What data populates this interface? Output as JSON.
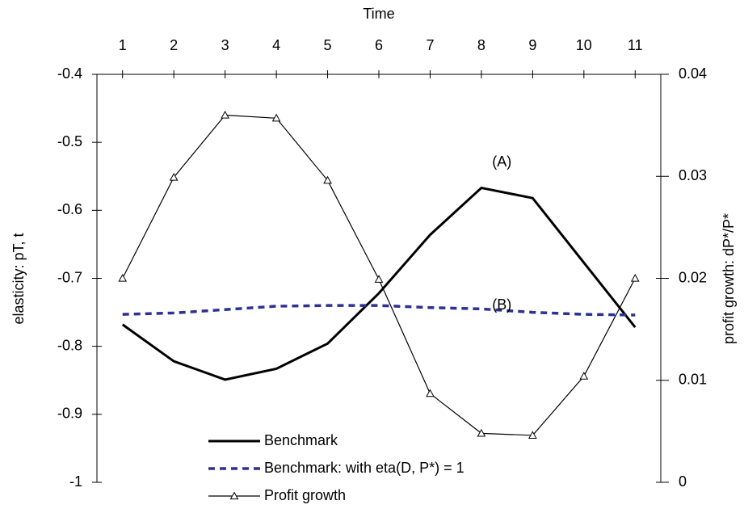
{
  "chart_data": {
    "type": "line",
    "x_label": "Time",
    "y_label": "elasticity: pT, t",
    "y2_label": "profit growth: dP*/P*",
    "x": [
      1,
      2,
      3,
      4,
      5,
      6,
      7,
      8,
      9,
      10,
      11
    ],
    "xlim": [
      0.5,
      11.5
    ],
    "xticks": [
      1,
      2,
      3,
      4,
      5,
      6,
      7,
      8,
      9,
      10,
      11
    ],
    "ylim": [
      -1,
      -0.4
    ],
    "yticks": [
      -1,
      -0.9,
      -0.8,
      -0.7,
      -0.6,
      -0.5,
      -0.4
    ],
    "y2lim": [
      0,
      0.04
    ],
    "y2ticks": [
      0,
      0.01,
      0.02,
      0.03,
      0.04
    ],
    "grid": false,
    "legend": "lower left",
    "annotations": [
      {
        "text": "(A)",
        "x": 8.4,
        "y": -0.53
      },
      {
        "text": "(B)",
        "x": 8.4,
        "y": -0.74
      }
    ],
    "series": [
      {
        "name": "Benchmark",
        "color": "#000000",
        "style": "solid",
        "width": 3,
        "marker": "none",
        "values": [
          -0.768,
          -0.822,
          -0.849,
          -0.833,
          -0.796,
          -0.722,
          -0.636,
          -0.567,
          -0.582,
          -0.677,
          -0.772
        ]
      },
      {
        "name": "Benchmark: with eta(D, P*) = 1",
        "color": "#2e3192",
        "style": "dashed",
        "width": 3.5,
        "marker": "none",
        "values": [
          -0.753,
          -0.751,
          -0.746,
          -0.741,
          -0.74,
          -0.74,
          -0.743,
          -0.745,
          -0.75,
          -0.753,
          -0.754
        ]
      },
      {
        "name": "Profit growth",
        "color": "#000000",
        "style": "solid",
        "width": 1.2,
        "marker": "triangle",
        "axis": "y2",
        "values": [
          0.02,
          0.0299,
          0.036,
          0.0357,
          0.0296,
          0.0199,
          0.0087,
          0.0048,
          0.0046,
          0.0104,
          0.02
        ]
      }
    ]
  }
}
